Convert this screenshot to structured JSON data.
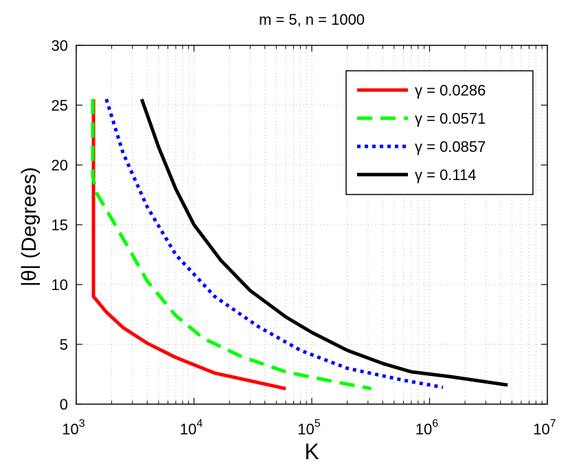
{
  "chart_data": {
    "type": "line",
    "title": "m = 5, n = 1000",
    "xlabel": "K",
    "ylabel": "|θ| (Degrees)",
    "xscale": "log",
    "xlim": [
      1000,
      10000000
    ],
    "ylim": [
      0,
      30
    ],
    "grid": true,
    "legend_position": "top-right",
    "x_ticks": [
      {
        "base": "10",
        "exp": "3",
        "value": 1000
      },
      {
        "base": "10",
        "exp": "4",
        "value": 10000
      },
      {
        "base": "10",
        "exp": "5",
        "value": 100000
      },
      {
        "base": "10",
        "exp": "6",
        "value": 1000000
      },
      {
        "base": "10",
        "exp": "7",
        "value": 10000000
      }
    ],
    "y_ticks": [
      "0",
      "5",
      "10",
      "15",
      "20",
      "25",
      "30"
    ],
    "series": [
      {
        "name": "γ = 0.0286",
        "color": "#ff0000",
        "style": "solid",
        "points": [
          [
            1400,
            25.5
          ],
          [
            1400,
            9.0
          ],
          [
            1800,
            7.7
          ],
          [
            2500,
            6.4
          ],
          [
            4000,
            5.1
          ],
          [
            7000,
            3.9
          ],
          [
            15000,
            2.6
          ],
          [
            60000,
            1.3
          ]
        ]
      },
      {
        "name": "γ = 0.0571",
        "color": "#00ff00",
        "style": "dashed",
        "points": [
          [
            1380,
            25.5
          ],
          [
            1380,
            19.0
          ],
          [
            1500,
            17.6
          ],
          [
            2000,
            15.5
          ],
          [
            2800,
            13.0
          ],
          [
            4000,
            10.3
          ],
          [
            7000,
            7.4
          ],
          [
            12000,
            5.5
          ],
          [
            25000,
            4.0
          ],
          [
            60000,
            2.7
          ],
          [
            150000,
            1.9
          ],
          [
            320000,
            1.3
          ]
        ]
      },
      {
        "name": "γ = 0.0857",
        "color": "#0000ff",
        "style": "dotted",
        "points": [
          [
            1800,
            25.5
          ],
          [
            2500,
            21.0
          ],
          [
            4000,
            16.5
          ],
          [
            7000,
            12.5
          ],
          [
            15000,
            9.0
          ],
          [
            35000,
            6.5
          ],
          [
            80000,
            4.5
          ],
          [
            200000,
            3.0
          ],
          [
            600000,
            2.0
          ],
          [
            1300000,
            1.4
          ]
        ]
      },
      {
        "name": "γ = 0.114",
        "color": "#000000",
        "style": "solid",
        "points": [
          [
            3600,
            25.5
          ],
          [
            5000,
            21.5
          ],
          [
            7000,
            18.0
          ],
          [
            10000,
            15.0
          ],
          [
            17000,
            12.0
          ],
          [
            30000,
            9.5
          ],
          [
            60000,
            7.3
          ],
          [
            100000,
            6.0
          ],
          [
            200000,
            4.5
          ],
          [
            400000,
            3.4
          ],
          [
            700000,
            2.7
          ],
          [
            1500000,
            2.3
          ],
          [
            4600000,
            1.6
          ]
        ]
      }
    ]
  }
}
